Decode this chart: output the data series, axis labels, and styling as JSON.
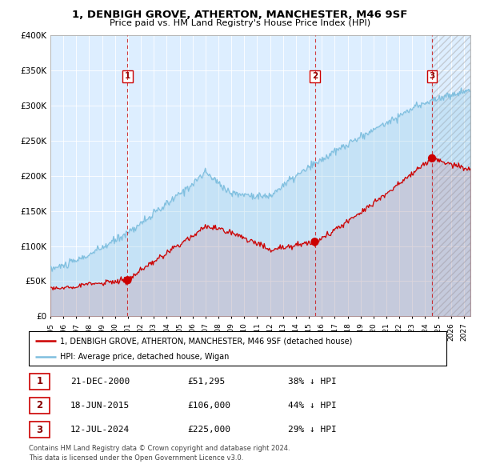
{
  "title1": "1, DENBIGH GROVE, ATHERTON, MANCHESTER, M46 9SF",
  "title2": "Price paid vs. HM Land Registry's House Price Index (HPI)",
  "ylim": [
    0,
    400000
  ],
  "xlim_start": 1995.0,
  "xlim_end": 2027.5,
  "sale_dates": [
    2000.97,
    2015.46,
    2024.53
  ],
  "sale_prices": [
    51295,
    106000,
    225000
  ],
  "sale_labels": [
    "1",
    "2",
    "3"
  ],
  "sale_label_texts": [
    "21-DEC-2000",
    "18-JUN-2015",
    "12-JUL-2024"
  ],
  "sale_price_texts": [
    "£51,295",
    "£106,000",
    "£225,000"
  ],
  "sale_pct_texts": [
    "38% ↓ HPI",
    "44% ↓ HPI",
    "29% ↓ HPI"
  ],
  "legend_line1": "1, DENBIGH GROVE, ATHERTON, MANCHESTER, M46 9SF (detached house)",
  "legend_line2": "HPI: Average price, detached house, Wigan",
  "footnote": "Contains HM Land Registry data © Crown copyright and database right 2024.\nThis data is licensed under the Open Government Licence v3.0.",
  "hpi_color": "#7fbfdf",
  "price_color": "#cc0000",
  "dashed_color": "#cc0000",
  "bg_color": "#ddeeff",
  "ytick_labels": [
    "£0",
    "£50K",
    "£100K",
    "£150K",
    "£200K",
    "£250K",
    "£300K",
    "£350K",
    "£400K"
  ],
  "ytick_values": [
    0,
    50000,
    100000,
    150000,
    200000,
    250000,
    300000,
    350000,
    400000
  ],
  "xtick_years": [
    1995,
    1996,
    1997,
    1998,
    1999,
    2000,
    2001,
    2002,
    2003,
    2004,
    2005,
    2006,
    2007,
    2008,
    2009,
    2010,
    2011,
    2012,
    2013,
    2014,
    2015,
    2016,
    2017,
    2018,
    2019,
    2020,
    2021,
    2022,
    2023,
    2024,
    2025,
    2026,
    2027
  ],
  "hpi_seed": 42,
  "price_seed": 42
}
